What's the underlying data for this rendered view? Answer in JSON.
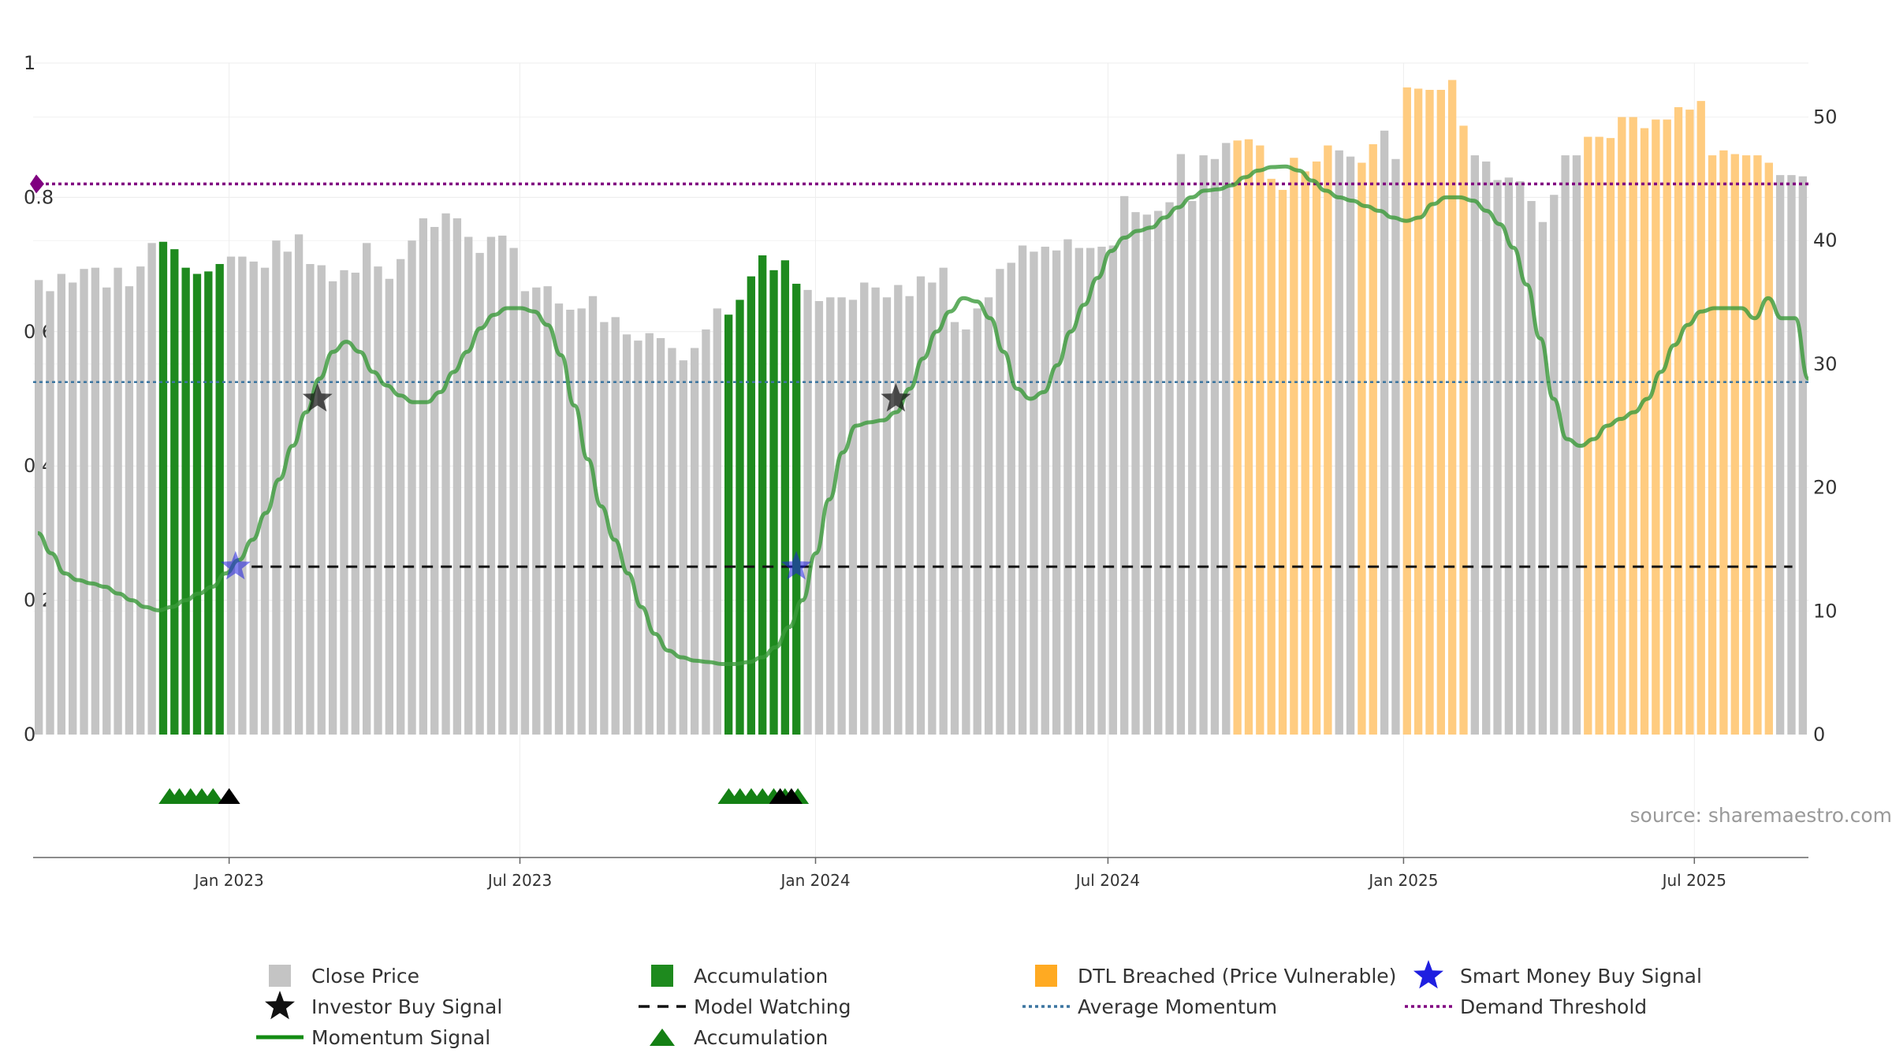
{
  "source_text": "source: sharemaestro.com",
  "colors": {
    "close": "#c4c4c4",
    "accumulation": "#1e8a1e",
    "dtl": "#ffcc80",
    "momentum": "#3a9a3a",
    "momentum_strong": "#148c14",
    "average": "#3b75a0",
    "demand": "#800080",
    "watching": "#111111",
    "smart_money": "#1f1fe0",
    "investor": "#111111",
    "tri_green": "#148014",
    "tri_black": "#000000"
  },
  "chart_data": {
    "type": "bar",
    "x_start": "2022-09-01",
    "x_end": "2025-09-10",
    "left_axis": {
      "range": [
        0,
        1
      ],
      "ticks": [
        0,
        0.2,
        0.4,
        0.6,
        0.8,
        1
      ],
      "tick_labels": [
        "0",
        "0.2",
        "0.4",
        "0.6",
        "0.8",
        "1"
      ]
    },
    "right_axis": {
      "range": [
        0,
        50
      ],
      "ticks": [
        0,
        10,
        20,
        30,
        40,
        50
      ],
      "tick_labels": [
        "0",
        "10",
        "20",
        "30",
        "40",
        "50"
      ]
    },
    "x_ticks": [
      {
        "date": "2023-01-01",
        "label": "Jan 2023"
      },
      {
        "date": "2023-07-01",
        "label": "Jul 2023"
      },
      {
        "date": "2024-01-01",
        "label": "Jan 2024"
      },
      {
        "date": "2024-07-01",
        "label": "Jul 2024"
      },
      {
        "date": "2025-01-01",
        "label": "Jan 2025"
      },
      {
        "date": "2025-07-01",
        "label": "Jul 2025"
      }
    ],
    "grid": true,
    "series": [
      {
        "name": "Close Price",
        "axis": "right",
        "values": [
          36.8,
          35.9,
          37.3,
          36.6,
          37.7,
          37.8,
          36.2,
          37.8,
          36.3,
          37.9,
          39.8,
          39.9,
          39.3,
          37.8,
          37.3,
          37.5,
          38.1,
          38.7,
          38.7,
          38.3,
          37.8,
          40.0,
          39.1,
          40.5,
          38.1,
          38.0,
          36.7,
          37.6,
          37.4,
          39.8,
          37.9,
          36.9,
          38.5,
          40.0,
          41.8,
          41.1,
          42.2,
          41.8,
          40.3,
          39.0,
          40.3,
          40.4,
          39.4,
          35.9,
          36.2,
          36.3,
          34.9,
          34.4,
          34.5,
          35.5,
          33.4,
          33.8,
          32.4,
          31.9,
          32.5,
          32.1,
          31.3,
          30.3,
          31.3,
          32.8,
          34.5,
          34.0,
          35.2,
          37.1,
          38.8,
          37.6,
          38.4,
          36.5,
          36.0,
          35.1,
          35.4,
          35.4,
          35.2,
          36.6,
          36.2,
          35.4,
          36.4,
          35.5,
          37.1,
          36.6,
          37.8,
          33.4,
          32.8,
          34.5,
          35.4,
          37.7,
          38.2,
          39.6,
          39.1,
          39.5,
          39.2,
          40.1,
          39.4,
          39.4,
          39.5,
          39.6,
          43.6,
          42.3,
          42.1,
          42.4,
          43.1,
          47.0,
          43.2,
          46.9,
          46.6,
          47.9,
          48.1,
          48.2,
          47.7,
          45.0,
          44.1,
          46.7,
          45.6,
          46.4,
          47.7,
          47.3,
          46.8,
          46.3,
          47.8,
          48.9,
          46.6,
          52.4,
          52.3,
          52.2,
          52.2,
          53.0,
          49.3,
          46.9,
          46.4,
          44.9,
          45.1,
          44.8,
          43.2,
          41.5,
          43.7,
          46.9,
          46.9,
          48.4,
          48.4,
          48.3,
          50.0,
          50.0,
          49.1,
          49.8,
          49.8,
          50.8,
          50.6,
          51.3,
          46.9,
          47.3,
          47.0,
          46.9,
          46.9,
          46.3,
          45.3,
          45.3,
          45.2
        ]
      },
      {
        "name": "Momentum Signal",
        "axis": "left",
        "values": [
          0.3,
          0.27,
          0.24,
          0.23,
          0.225,
          0.22,
          0.21,
          0.2,
          0.19,
          0.185,
          0.19,
          0.2,
          0.21,
          0.22,
          0.24,
          0.26,
          0.29,
          0.33,
          0.38,
          0.43,
          0.48,
          0.53,
          0.57,
          0.585,
          0.57,
          0.54,
          0.52,
          0.505,
          0.495,
          0.495,
          0.51,
          0.54,
          0.57,
          0.605,
          0.625,
          0.635,
          0.635,
          0.63,
          0.61,
          0.565,
          0.49,
          0.41,
          0.34,
          0.29,
          0.24,
          0.19,
          0.15,
          0.125,
          0.115,
          0.11,
          0.108,
          0.105,
          0.105,
          0.108,
          0.115,
          0.13,
          0.16,
          0.2,
          0.27,
          0.35,
          0.42,
          0.46,
          0.465,
          0.468,
          0.48,
          0.515,
          0.56,
          0.6,
          0.63,
          0.65,
          0.645,
          0.62,
          0.57,
          0.515,
          0.5,
          0.51,
          0.55,
          0.6,
          0.64,
          0.68,
          0.72,
          0.74,
          0.75,
          0.755,
          0.77,
          0.785,
          0.8,
          0.81,
          0.812,
          0.818,
          0.83,
          0.84,
          0.845,
          0.846,
          0.84,
          0.825,
          0.81,
          0.8,
          0.795,
          0.787,
          0.78,
          0.77,
          0.765,
          0.77,
          0.79,
          0.8,
          0.8,
          0.795,
          0.78,
          0.76,
          0.725,
          0.67,
          0.59,
          0.5,
          0.44,
          0.43,
          0.44,
          0.46,
          0.47,
          0.48,
          0.5,
          0.54,
          0.58,
          0.61,
          0.63,
          0.635,
          0.635,
          0.635,
          0.62,
          0.65,
          0.62,
          0.62,
          0.53
        ]
      }
    ],
    "accumulation_ranges": [
      {
        "start": "2022-11-20",
        "end": "2022-12-31"
      },
      {
        "start": "2023-11-05",
        "end": "2023-12-25"
      }
    ],
    "dtl_ranges": [
      {
        "start": "2024-09-15",
        "end": "2024-11-20"
      },
      {
        "start": "2024-12-05",
        "end": "2024-12-20"
      },
      {
        "start": "2025-01-01",
        "end": "2025-02-10"
      },
      {
        "start": "2025-04-20",
        "end": "2025-08-20"
      }
    ],
    "average_momentum": 0.525,
    "demand_threshold": 0.82,
    "model_watching": {
      "start": "2023-01-15",
      "end": "2025-08-31",
      "value": 0.25
    },
    "smart_money_signals": [
      {
        "date": "2023-01-05",
        "value": 0.25
      },
      {
        "date": "2023-12-20",
        "value": 0.25
      }
    ],
    "investor_signals": [
      {
        "date": "2023-02-25",
        "value": 0.5
      },
      {
        "date": "2024-02-20",
        "value": 0.5
      }
    ],
    "accumulation_markers": [
      "2022-11-25",
      "2022-12-01",
      "2022-12-08",
      "2022-12-15",
      "2022-12-22",
      "2023-11-08",
      "2023-11-15",
      "2023-11-22",
      "2023-11-29",
      "2023-12-06",
      "2023-12-13",
      "2023-12-21"
    ],
    "black_markers": [
      "2023-01-01",
      "2023-12-10",
      "2023-12-17"
    ],
    "legend": [
      {
        "label": "Close Price",
        "symbol": "square",
        "color": "#c4c4c4"
      },
      {
        "label": "Accumulation",
        "symbol": "square",
        "color": "#1e8a1e"
      },
      {
        "label": "DTL Breached (Price Vulnerable)",
        "symbol": "square",
        "color": "#ffaa22"
      },
      {
        "label": "Smart Money Buy Signal",
        "symbol": "star",
        "color": "#1f1fe0"
      },
      {
        "label": "Investor Buy Signal",
        "symbol": "star",
        "color": "#111111"
      },
      {
        "label": "Model Watching",
        "symbol": "dash",
        "color": "#111111"
      },
      {
        "label": "Average Momentum",
        "symbol": "dot",
        "color": "#3b75a0"
      },
      {
        "label": "Demand Threshold",
        "symbol": "dot",
        "color": "#800080"
      },
      {
        "label": "Momentum Signal",
        "symbol": "line",
        "color": "#148c14"
      },
      {
        "label": "Accumulation",
        "symbol": "triangle",
        "color": "#148014"
      }
    ]
  }
}
